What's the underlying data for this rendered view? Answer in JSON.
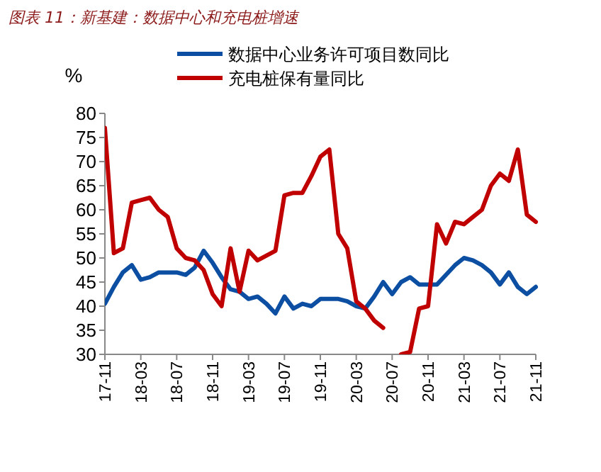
{
  "chart_data": {
    "type": "line",
    "title": "图表 11：新基建：数据中心和充电桩增速",
    "ylabel": "%",
    "categories": [
      "17-11",
      null,
      null,
      null,
      "18-03",
      null,
      null,
      null,
      "18-07",
      null,
      null,
      null,
      "18-11",
      null,
      null,
      null,
      "19-03",
      null,
      null,
      null,
      "19-07",
      null,
      null,
      null,
      "19-11",
      null,
      null,
      null,
      "20-03",
      null,
      null,
      null,
      "20-07",
      null,
      null,
      null,
      "20-11",
      null,
      null,
      null,
      "21-03",
      null,
      null,
      null,
      "21-07",
      null,
      null,
      null,
      "21-11"
    ],
    "series": [
      {
        "name": "数据中心业务许可项目数同比",
        "color": "#0b4ea2",
        "values": [
          40.5,
          44,
          47,
          48.5,
          45.5,
          46,
          47,
          47,
          47,
          46.5,
          48,
          51.5,
          49,
          46,
          43.5,
          43,
          41.5,
          42,
          40.5,
          38.5,
          42,
          39.5,
          40.5,
          40,
          41.5,
          41.5,
          41.5,
          41,
          40,
          39.5,
          42,
          45,
          42.5,
          45,
          46,
          44.5,
          44.5,
          44.5,
          46.5,
          48.5,
          50,
          49.5,
          48.5,
          47,
          44.5,
          47,
          44,
          42.5,
          44
        ]
      },
      {
        "name": "充电桩保有量同比",
        "color": "#c00000",
        "values": [
          77,
          51,
          52,
          61.5,
          62,
          62.5,
          60,
          58.5,
          52,
          50,
          49.5,
          47.5,
          42.5,
          40,
          52,
          43,
          51.5,
          49.5,
          50.5,
          51.5,
          63,
          63.5,
          63.5,
          67,
          71,
          72.5,
          55,
          52,
          41,
          39.5,
          37,
          35.5,
          null,
          30,
          30.5,
          39.5,
          40,
          57,
          53,
          57.5,
          57,
          58.5,
          60,
          65,
          67.5,
          66,
          72.5,
          59,
          57.5
        ]
      }
    ],
    "ylim": [
      30,
      80
    ],
    "yticks": [
      30,
      35,
      40,
      45,
      50,
      55,
      60,
      65,
      70,
      75,
      80
    ],
    "legend": "top",
    "grid": false
  }
}
